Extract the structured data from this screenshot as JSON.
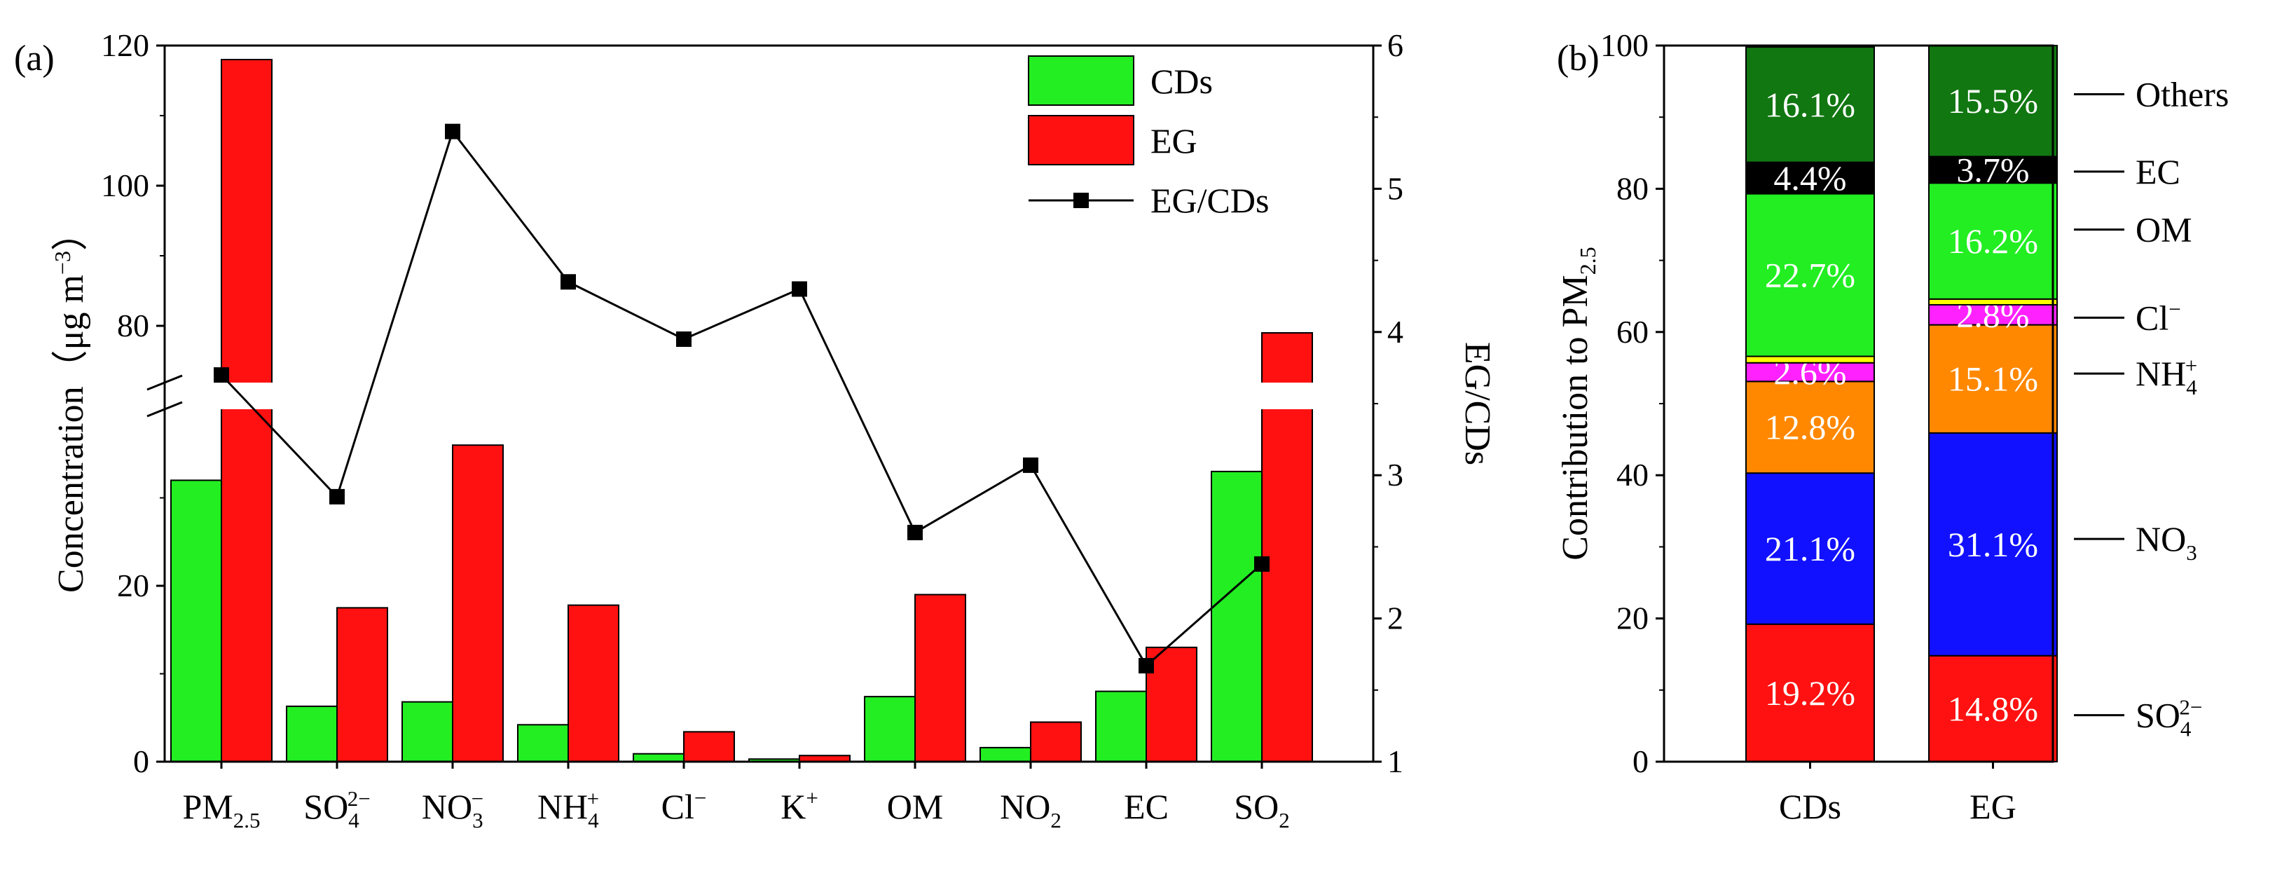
{
  "chart_data": [
    {
      "type": "bar+line",
      "panel_label": "(a)",
      "categories": [
        {
          "base": "PM",
          "sub": "2.5"
        },
        {
          "base": "SO",
          "sub": "4",
          "sup": "2−"
        },
        {
          "base": "NO",
          "sub": "3",
          "sup": "−"
        },
        {
          "base": "NH",
          "sub": "4",
          "sup": "+"
        },
        {
          "base": "Cl",
          "sup": "−"
        },
        {
          "base": "K",
          "sup": "+"
        },
        {
          "base": "OM"
        },
        {
          "base": "NO",
          "sub": "2"
        },
        {
          "base": "EC"
        },
        {
          "base": "SO",
          "sub": "2"
        }
      ],
      "series": [
        {
          "name": "CDs",
          "kind": "bar",
          "color": "#22ee22",
          "values": [
            32,
            6.3,
            6.8,
            4.2,
            0.9,
            0.3,
            7.4,
            1.6,
            8.0,
            33
          ]
        },
        {
          "name": "EG",
          "kind": "bar",
          "color": "#ff1111",
          "values": [
            118,
            17.5,
            36,
            17.8,
            3.4,
            0.7,
            19,
            4.5,
            13,
            79
          ]
        },
        {
          "name": "EG/CDs",
          "kind": "line",
          "axis": "right",
          "color": "#000000",
          "values": [
            3.7,
            2.85,
            5.4,
            4.35,
            3.95,
            4.3,
            2.6,
            3.07,
            1.67,
            2.38
          ]
        }
      ],
      "ylabel": {
        "text": "Concentration（μg m",
        "sup": "−3",
        "tail": "）"
      },
      "y2label": "EG/CDs",
      "ylim_lower": [
        0,
        40
      ],
      "ylim_upper": [
        72,
        120
      ],
      "yticks_lower": [
        "0",
        "20"
      ],
      "yticks_upper": [
        "80",
        "100",
        "120"
      ],
      "y2lim": [
        1,
        6
      ],
      "y2ticks": [
        "1",
        "2",
        "3",
        "4",
        "5",
        "6"
      ],
      "axis_break": true,
      "legend": {
        "position": "top-right",
        "labels": [
          "CDs",
          "EG",
          "EG/CDs"
        ]
      }
    },
    {
      "type": "stacked-bar",
      "panel_label": "(b)",
      "categories": [
        "CDs",
        "EG"
      ],
      "ylabel": {
        "text": "Contribution to PM",
        "sub": "2.5"
      },
      "ylim": [
        0,
        100
      ],
      "yticks": [
        "0",
        "20",
        "40",
        "60",
        "80",
        "100"
      ],
      "series": [
        {
          "name": "SO4 2−",
          "color": "#ff1111",
          "values": [
            19.2,
            14.8
          ],
          "labels": [
            "19.2%",
            "14.8%"
          ]
        },
        {
          "name": "NO3",
          "color": "#1111ff",
          "values": [
            21.1,
            31.1
          ],
          "labels": [
            "21.1%",
            "31.1%"
          ]
        },
        {
          "name": "NH4+",
          "color": "#ff8800",
          "values": [
            12.8,
            15.1
          ],
          "labels": [
            "12.8%",
            "15.1%"
          ]
        },
        {
          "name": "Cl−",
          "color": "#ff22ff",
          "values": [
            2.6,
            2.8
          ],
          "labels": [
            "2.6%",
            "2.8%"
          ]
        },
        {
          "name": "gap",
          "color": "#ffff00",
          "values": [
            0.9,
            0.8
          ],
          "labels": [
            "",
            ""
          ]
        },
        {
          "name": "OM",
          "color": "#22ee22",
          "values": [
            22.7,
            16.2
          ],
          "labels": [
            "22.7%",
            "16.2%"
          ]
        },
        {
          "name": "EC",
          "color": "#000000",
          "values": [
            4.4,
            3.7
          ],
          "labels": [
            "4.4%",
            "3.7%"
          ]
        },
        {
          "name": "Others",
          "color": "#117711",
          "values": [
            16.1,
            15.5
          ],
          "labels": [
            "16.1%",
            "15.5%"
          ]
        }
      ],
      "side_labels": [
        {
          "base": "Others",
          "value": 93.2
        },
        {
          "base": "EC",
          "value": 82.4
        },
        {
          "base": "OM",
          "value": 74.3
        },
        {
          "base": "Cl",
          "sup": "−",
          "value": 62.0
        },
        {
          "base": "NH",
          "sub": "4",
          "sup": "+",
          "value": 54.2
        },
        {
          "base": "NO",
          "sub": "3",
          "value": 31.1
        },
        {
          "base": "SO",
          "sub": "4",
          "sup": "2−",
          "value": 6.5
        }
      ]
    }
  ]
}
